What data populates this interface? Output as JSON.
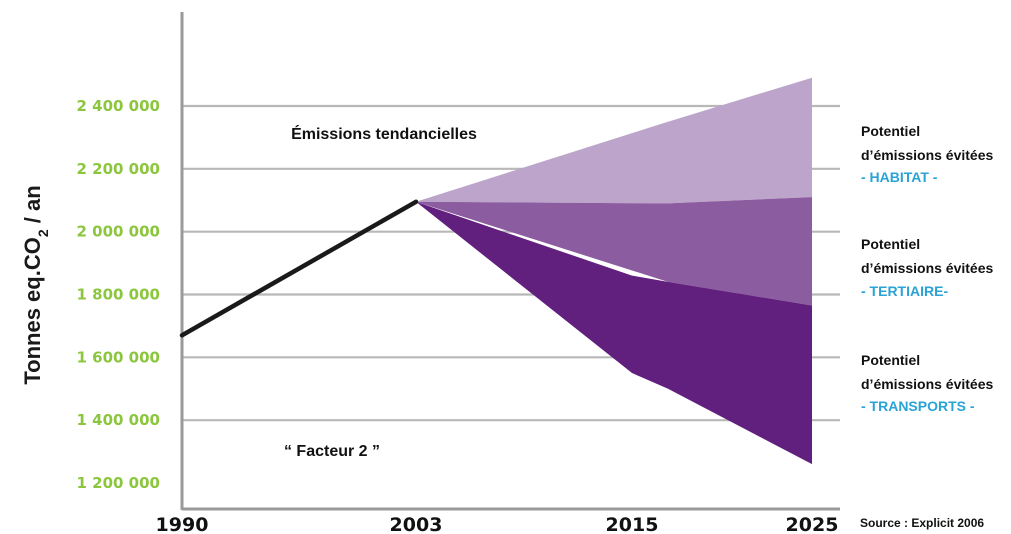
{
  "chart_data": {
    "type": "area",
    "ylabel_main": "Tonnes eq.CO",
    "ylabel_sub": "2",
    "ylabel_tail": " / an",
    "ylim": [
      1200000,
      2400000
    ],
    "yticks": [
      {
        "value": 2400000,
        "label": "2 400 000"
      },
      {
        "value": 2200000,
        "label": "2 200 000"
      },
      {
        "value": 2000000,
        "label": "2 000 000"
      },
      {
        "value": 1800000,
        "label": "1 800 000"
      },
      {
        "value": 1600000,
        "label": "1 600 000"
      },
      {
        "value": 1400000,
        "label": "1 400 000"
      },
      {
        "value": 1200000,
        "label": "1 200 000"
      }
    ],
    "xticks": [
      {
        "value": 1990,
        "label": "1990"
      },
      {
        "value": 2003,
        "label": "2003"
      },
      {
        "value": 2015,
        "label": "2015"
      },
      {
        "value": 2025,
        "label": "2025"
      }
    ],
    "historical": {
      "x": [
        1990,
        2003
      ],
      "y": [
        1670000,
        2095000
      ]
    },
    "bands": [
      {
        "name": "HABITAT",
        "color": "#bca4ca",
        "x": [
          2003,
          2017,
          2025
        ],
        "upper": [
          2095000,
          2350000,
          2490000
        ],
        "lower": [
          2095000,
          2090000,
          2110000
        ]
      },
      {
        "name": "TERTIAIRE",
        "color": "#8b5c9f",
        "x": [
          2003,
          2017,
          2025
        ],
        "upper": [
          2095000,
          2090000,
          2110000
        ],
        "lower": [
          2095000,
          1840000,
          1765000
        ]
      },
      {
        "name": "TRANSPORTS",
        "color": "#611f7e",
        "x": [
          2003,
          2015,
          2017,
          2025
        ],
        "upper": [
          2095000,
          1860000,
          1840000,
          1765000
        ],
        "lower": [
          2095000,
          1550000,
          1500000,
          1260000
        ]
      }
    ],
    "annotations": [
      {
        "text": "Émissions tendancielles"
      },
      {
        "text": "“ Facteur 2 ”"
      }
    ],
    "legend": [
      {
        "line1": "Potentiel",
        "line2": "d’émissions évitées",
        "sector": "- HABITAT -"
      },
      {
        "line1": "Potentiel",
        "line2": "d’émissions évitées",
        "sector": "- TERTIAIRE-"
      },
      {
        "line1": "Potentiel",
        "line2": "d’émissions évitées",
        "sector": "- TRANSPORTS -"
      }
    ],
    "source": "Source : Explicit 2006",
    "colors": {
      "ytick": "#8cc63e",
      "legend_sector": "#2aa3d6",
      "grid": "#b8b8b8",
      "axis": "#9a9a9a",
      "historical_line": "#1a1a1a"
    },
    "grid": true
  }
}
